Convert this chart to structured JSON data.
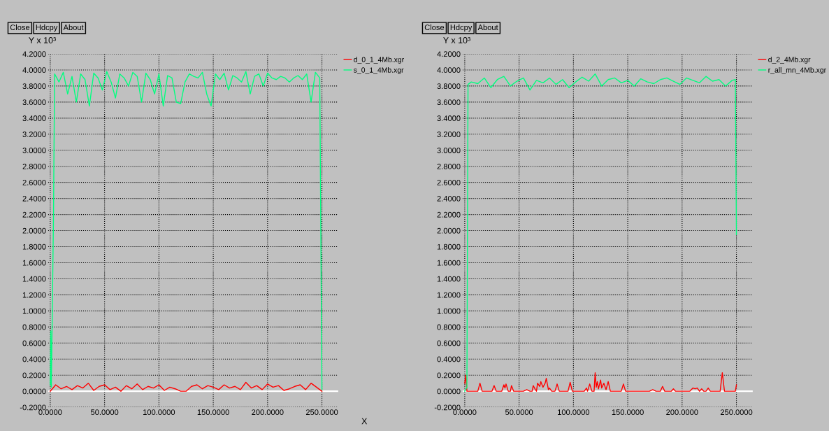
{
  "chart_data": [
    {
      "type": "line",
      "ylabel": "Y x 10³",
      "xlabel": "X",
      "annotations": [
        "Close",
        "Hdcpy",
        "About"
      ],
      "xlim": [
        -2,
        265
      ],
      "ylim": [
        -0.2,
        4.2
      ],
      "xticks": [
        {
          "value": 0,
          "label": "0.0000"
        },
        {
          "value": 50,
          "label": "50.0000"
        },
        {
          "value": 100,
          "label": "100.0000"
        },
        {
          "value": 150,
          "label": "150.0000"
        },
        {
          "value": 200,
          "label": "200.0000"
        },
        {
          "value": 250,
          "label": "250.0000"
        }
      ],
      "yticks": [
        {
          "value": -0.2,
          "label": "-0.2000"
        },
        {
          "value": 0,
          "label": "0.0000"
        },
        {
          "value": 0.2,
          "label": "0.2000"
        },
        {
          "value": 0.4,
          "label": "0.4000"
        },
        {
          "value": 0.6,
          "label": "0.6000"
        },
        {
          "value": 0.8,
          "label": "0.8000"
        },
        {
          "value": 1.0,
          "label": "1.0000"
        },
        {
          "value": 1.2,
          "label": "1.2000"
        },
        {
          "value": 1.4,
          "label": "1.4000"
        },
        {
          "value": 1.6,
          "label": "1.6000"
        },
        {
          "value": 1.8,
          "label": "1.8000"
        },
        {
          "value": 2.0,
          "label": "2.0000"
        },
        {
          "value": 2.2,
          "label": "2.2000"
        },
        {
          "value": 2.4,
          "label": "2.4000"
        },
        {
          "value": 2.6,
          "label": "2.6000"
        },
        {
          "value": 2.8,
          "label": "2.8000"
        },
        {
          "value": 3.0,
          "label": "3.0000"
        },
        {
          "value": 3.2,
          "label": "3.2000"
        },
        {
          "value": 3.4,
          "label": "3.4000"
        },
        {
          "value": 3.6,
          "label": "3.6000"
        },
        {
          "value": 3.8,
          "label": "3.8000"
        },
        {
          "value": 4.0,
          "label": "4.0000"
        },
        {
          "value": 4.2,
          "label": "4.2000"
        }
      ],
      "grid": true,
      "legend": "top right",
      "ref_lines": [
        {
          "axis": "y",
          "value": 0,
          "color": "#ffffff"
        }
      ],
      "series": [
        {
          "name": "d_0_1_4Mb.xgr",
          "color": "#ff0000",
          "x": [
            0,
            5,
            10,
            15,
            20,
            25,
            30,
            35,
            40,
            45,
            50,
            55,
            60,
            65,
            70,
            75,
            80,
            85,
            90,
            95,
            100,
            105,
            110,
            115,
            120,
            125,
            130,
            135,
            140,
            145,
            150,
            155,
            160,
            165,
            170,
            175,
            180,
            185,
            190,
            195,
            200,
            205,
            210,
            215,
            220,
            225,
            230,
            235,
            240,
            245,
            250
          ],
          "values": [
            0.0,
            0.08,
            0.03,
            0.06,
            0.02,
            0.07,
            0.04,
            0.1,
            0.01,
            0.06,
            0.08,
            0.02,
            0.05,
            0.0,
            0.07,
            0.03,
            0.09,
            0.02,
            0.06,
            0.04,
            0.08,
            0.01,
            0.05,
            0.03,
            0.0,
            0.0,
            0.06,
            0.08,
            0.03,
            0.07,
            0.05,
            0.02,
            0.08,
            0.04,
            0.06,
            0.02,
            0.11,
            0.04,
            0.07,
            0.02,
            0.09,
            0.05,
            0.07,
            0.01,
            0.03,
            0.06,
            0.08,
            0.02,
            0.1,
            0.05,
            0.0
          ]
        },
        {
          "name": "s_0_1_4Mb.xgr",
          "color": "#00ff7f",
          "x": [
            0,
            0.5,
            1,
            3,
            4,
            8,
            12,
            16,
            20,
            24,
            28,
            32,
            36,
            40,
            44,
            48,
            52,
            56,
            60,
            64,
            68,
            72,
            76,
            80,
            84,
            88,
            92,
            96,
            100,
            104,
            108,
            112,
            116,
            120,
            124,
            128,
            132,
            136,
            140,
            144,
            148,
            152,
            156,
            160,
            164,
            168,
            172,
            176,
            180,
            184,
            188,
            192,
            196,
            200,
            204,
            208,
            212,
            216,
            220,
            224,
            228,
            232,
            236,
            240,
            244,
            248,
            250
          ],
          "values": [
            0.08,
            0.75,
            0.05,
            2.2,
            3.95,
            3.85,
            3.97,
            3.7,
            3.92,
            3.6,
            3.95,
            3.88,
            3.55,
            3.96,
            3.9,
            3.75,
            3.98,
            3.85,
            3.65,
            3.95,
            3.9,
            3.8,
            3.97,
            3.92,
            3.6,
            3.96,
            3.88,
            3.7,
            3.95,
            3.55,
            3.93,
            3.9,
            3.6,
            3.58,
            3.85,
            3.95,
            3.92,
            3.9,
            3.97,
            3.7,
            3.55,
            3.95,
            3.88,
            3.96,
            3.75,
            3.93,
            3.9,
            3.85,
            3.98,
            3.7,
            3.92,
            3.95,
            3.8,
            3.96,
            3.9,
            3.88,
            3.92,
            3.9,
            3.85,
            3.9,
            3.93,
            3.88,
            3.95,
            3.6,
            3.97,
            3.9,
            0.02
          ]
        }
      ]
    },
    {
      "type": "line",
      "ylabel": "Y x 10³",
      "annotations": [
        "Close",
        "Hdcpy",
        "About"
      ],
      "xlim": [
        -2,
        265
      ],
      "ylim": [
        -0.2,
        4.2
      ],
      "xticks": [
        {
          "value": 0,
          "label": "0.0000"
        },
        {
          "value": 50,
          "label": "50.0000"
        },
        {
          "value": 100,
          "label": "100.0000"
        },
        {
          "value": 150,
          "label": "150.0000"
        },
        {
          "value": 200,
          "label": "200.0000"
        },
        {
          "value": 250,
          "label": "250.0000"
        }
      ],
      "yticks": [
        {
          "value": -0.2,
          "label": "-0.2000"
        },
        {
          "value": 0,
          "label": "0.0000"
        },
        {
          "value": 0.2,
          "label": "0.2000"
        },
        {
          "value": 0.4,
          "label": "0.4000"
        },
        {
          "value": 0.6,
          "label": "0.6000"
        },
        {
          "value": 0.8,
          "label": "0.8000"
        },
        {
          "value": 1.0,
          "label": "1.0000"
        },
        {
          "value": 1.2,
          "label": "1.2000"
        },
        {
          "value": 1.4,
          "label": "1.4000"
        },
        {
          "value": 1.6,
          "label": "1.6000"
        },
        {
          "value": 1.8,
          "label": "1.8000"
        },
        {
          "value": 2.0,
          "label": "2.0000"
        },
        {
          "value": 2.2,
          "label": "2.2000"
        },
        {
          "value": 2.4,
          "label": "2.4000"
        },
        {
          "value": 2.6,
          "label": "2.6000"
        },
        {
          "value": 2.8,
          "label": "2.8000"
        },
        {
          "value": 3.0,
          "label": "3.0000"
        },
        {
          "value": 3.2,
          "label": "3.2000"
        },
        {
          "value": 3.4,
          "label": "3.4000"
        },
        {
          "value": 3.6,
          "label": "3.6000"
        },
        {
          "value": 3.8,
          "label": "3.8000"
        },
        {
          "value": 4.0,
          "label": "4.0000"
        },
        {
          "value": 4.2,
          "label": "4.2000"
        }
      ],
      "grid": true,
      "legend": "top right",
      "ref_lines": [
        {
          "axis": "y",
          "value": 0,
          "color": "#ffffff"
        }
      ],
      "series": [
        {
          "name": "d_2_4Mb.xgr",
          "color": "#ff0000",
          "x": [
            0,
            1,
            2,
            12,
            14,
            16,
            25,
            27,
            29,
            34,
            36,
            37,
            38,
            40,
            42,
            43,
            45,
            54,
            57,
            60,
            62,
            63,
            65,
            66,
            67,
            69,
            70,
            72,
            74,
            75,
            77,
            78,
            80,
            83,
            85,
            87,
            95,
            97,
            99,
            110,
            112,
            113,
            115,
            117,
            119,
            120,
            121,
            122,
            123,
            125,
            126,
            128,
            130,
            132,
            134,
            144,
            146,
            148,
            170,
            173,
            176,
            180,
            182,
            184,
            190,
            192,
            194,
            207,
            210,
            212,
            214,
            216,
            218,
            220,
            222,
            224,
            226,
            235,
            237,
            239,
            249,
            250
          ],
          "values": [
            0.1,
            0.2,
            0,
            0,
            0.1,
            0,
            0,
            0.07,
            0,
            0,
            0.08,
            0.04,
            0.09,
            0,
            0,
            0.07,
            0,
            0,
            0.02,
            0,
            0,
            0.07,
            0.02,
            0,
            0.1,
            0.06,
            0.12,
            0.05,
            0.1,
            0.16,
            0.02,
            0.04,
            0,
            0,
            0.09,
            0,
            0,
            0.11,
            0,
            0,
            0.04,
            0,
            0.09,
            0,
            0,
            0.23,
            0.05,
            0.12,
            0.03,
            0.14,
            0.04,
            0.1,
            0.02,
            0.12,
            0,
            0,
            0.09,
            0,
            0,
            0.02,
            0,
            0,
            0.06,
            0,
            0,
            0.03,
            0,
            0,
            0.04,
            0.03,
            0.04,
            0,
            0.03,
            0,
            0,
            0.04,
            0,
            0,
            0.23,
            0,
            0,
            0.08
          ]
        },
        {
          "name": "r_all_mn_4Mb.xgr",
          "color": "#00ff7f",
          "x": [
            0,
            2,
            3,
            6,
            12,
            18,
            24,
            30,
            36,
            42,
            48,
            54,
            60,
            66,
            72,
            78,
            84,
            90,
            96,
            102,
            108,
            114,
            120,
            126,
            132,
            138,
            144,
            150,
            156,
            162,
            168,
            174,
            180,
            186,
            192,
            198,
            204,
            210,
            216,
            222,
            228,
            234,
            240,
            246,
            249,
            250
          ],
          "values": [
            0.0,
            0.05,
            3.82,
            3.85,
            3.83,
            3.9,
            3.78,
            3.88,
            3.92,
            3.8,
            3.86,
            3.9,
            3.75,
            3.87,
            3.84,
            3.9,
            3.82,
            3.88,
            3.78,
            3.85,
            3.91,
            3.86,
            3.95,
            3.8,
            3.88,
            3.9,
            3.84,
            3.87,
            3.8,
            3.89,
            3.85,
            3.83,
            3.88,
            3.9,
            3.86,
            3.82,
            3.9,
            3.87,
            3.84,
            3.92,
            3.86,
            3.88,
            3.8,
            3.87,
            3.88,
            1.95
          ]
        }
      ]
    }
  ]
}
